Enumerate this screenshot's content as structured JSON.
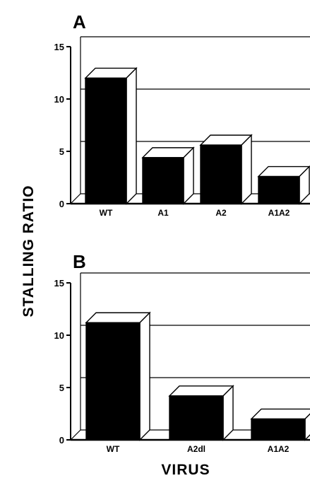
{
  "ylabel": "STALLING RATIO",
  "xlabel": "VIRUS",
  "chart_data": [
    {
      "type": "bar",
      "panel": "A",
      "categories": [
        "WT",
        "A1",
        "A2",
        "A1A2"
      ],
      "values": [
        12,
        4.4,
        5.6,
        2.6
      ],
      "ylim": [
        0,
        15
      ],
      "yticks": [
        0,
        5,
        10,
        15
      ],
      "grid": true
    },
    {
      "type": "bar",
      "panel": "B",
      "categories": [
        "WT",
        "A2dl",
        "A1A2"
      ],
      "values": [
        11.2,
        4.2,
        2.0
      ],
      "ylim": [
        0,
        15
      ],
      "yticks": [
        0,
        5,
        10,
        15
      ],
      "grid": true
    }
  ]
}
